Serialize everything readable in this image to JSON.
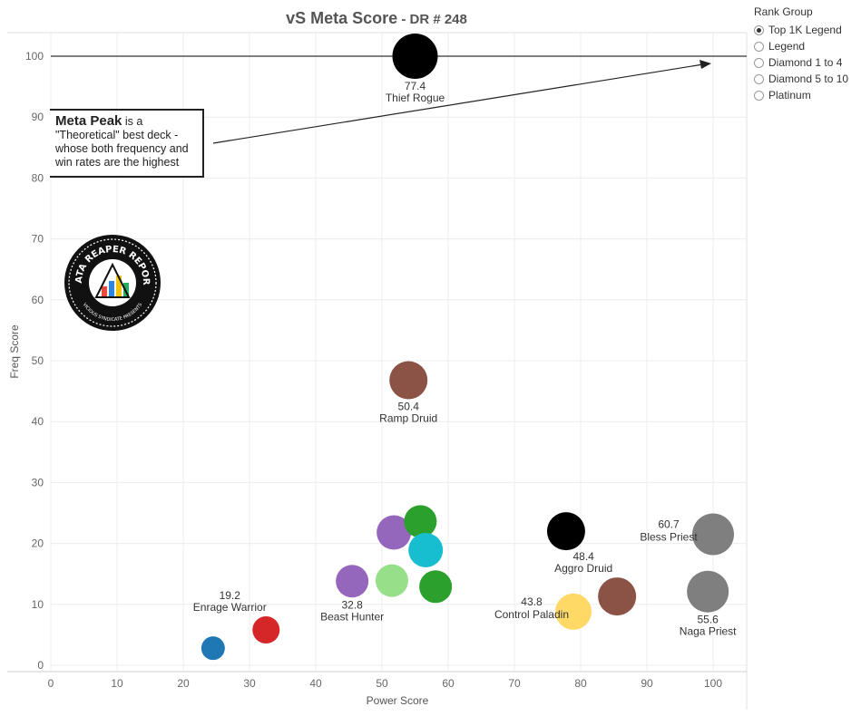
{
  "header": {
    "title": "vS Meta Score",
    "subtitle": " - DR # 248"
  },
  "legend": {
    "title": "Rank Group",
    "options": [
      {
        "label": "Top 1K Legend",
        "selected": true
      },
      {
        "label": "Legend",
        "selected": false
      },
      {
        "label": "Diamond 1 to 4",
        "selected": false
      },
      {
        "label": "Diamond 5 to 10",
        "selected": false
      },
      {
        "label": "Platinum",
        "selected": false
      }
    ]
  },
  "callout": {
    "bold": "Meta Peak",
    "text": " is a \"Theoretical\" best deck - whose both frequency and win rates are the highest"
  },
  "logo": {
    "top_text": "DATA REAPER REPORT",
    "bottom_text": "VICIOUS SYNDICATE PRESENTS"
  },
  "chart_data": {
    "type": "scatter",
    "title": "vS Meta Score - DR # 248",
    "xlabel": "Power Score",
    "ylabel": "Freq Score",
    "xlim": [
      0,
      105
    ],
    "ylim": [
      0,
      105
    ],
    "xticks": [
      0,
      10,
      20,
      30,
      40,
      50,
      60,
      70,
      80,
      90,
      100
    ],
    "yticks": [
      0,
      10,
      20,
      30,
      40,
      50,
      60,
      70,
      80,
      90,
      100
    ],
    "grid": true,
    "reference_line_y": 100,
    "points": [
      {
        "x": 55,
        "y": 100,
        "color": "#000000",
        "r": 25,
        "value_label": "77.4",
        "name_label": "Thief Rogue",
        "label_pos": "below"
      },
      {
        "x": 54,
        "y": 46.8,
        "color": "#8B5246",
        "r": 21,
        "value_label": "50.4",
        "name_label": "Ramp Druid",
        "label_pos": "below"
      },
      {
        "x": 32.5,
        "y": 5.8,
        "color": "#D62728",
        "r": 15,
        "value_label": "19.2",
        "name_label": "Enrage Warrior",
        "label_pos": "above"
      },
      {
        "x": 24.5,
        "y": 2.8,
        "color": "#1F77B4",
        "r": 13,
        "value_label": "",
        "name_label": "",
        "label_pos": "none"
      },
      {
        "x": 45.5,
        "y": 13.8,
        "color": "#9467BD",
        "r": 18,
        "value_label": "32.8",
        "name_label": "Beast Hunter",
        "label_pos": "below"
      },
      {
        "x": 51.5,
        "y": 13.9,
        "color": "#98DF8A",
        "r": 18,
        "value_label": "",
        "name_label": "",
        "label_pos": "none"
      },
      {
        "x": 51.8,
        "y": 21.8,
        "color": "#9467BD",
        "r": 19,
        "value_label": "",
        "name_label": "",
        "label_pos": "none"
      },
      {
        "x": 55.8,
        "y": 23.6,
        "color": "#2CA02C",
        "r": 18,
        "value_label": "",
        "name_label": "",
        "label_pos": "none"
      },
      {
        "x": 56.6,
        "y": 18.9,
        "color": "#17BECF",
        "r": 19,
        "value_label": "",
        "name_label": "",
        "label_pos": "none"
      },
      {
        "x": 58.1,
        "y": 12.9,
        "color": "#2CA02C",
        "r": 18,
        "value_label": "",
        "name_label": "",
        "label_pos": "none"
      },
      {
        "x": 77.8,
        "y": 22,
        "color": "#000000",
        "r": 21,
        "value_label": "",
        "name_label": "",
        "label_pos": "none"
      },
      {
        "x": 78.9,
        "y": 8.8,
        "color": "#FFD966",
        "r": 20,
        "value_label": "43.8",
        "name_label": "Control Paladin",
        "label_pos": "left"
      },
      {
        "x": 85.5,
        "y": 11.3,
        "color": "#8B5246",
        "r": 21,
        "value_label": "48.4",
        "name_label": "Aggro Druid",
        "label_pos": "above"
      },
      {
        "x": 99.2,
        "y": 12.1,
        "color": "#7F7F7F",
        "r": 23,
        "value_label": "55.6",
        "name_label": "Naga Priest",
        "label_pos": "below"
      },
      {
        "x": 100,
        "y": 21.5,
        "color": "#7F7F7F",
        "r": 23,
        "value_label": "60.7",
        "name_label": "Bless Priest",
        "label_pos": "left"
      }
    ]
  }
}
